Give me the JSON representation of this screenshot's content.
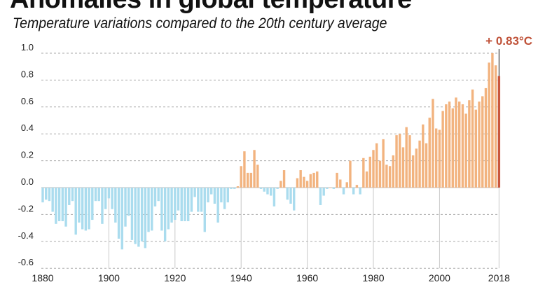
{
  "chart_data": {
    "type": "bar",
    "title": "Anomalies in global temperature",
    "subtitle": "Temperature variations compared to the 20th century average",
    "xlabel": "",
    "ylabel": "",
    "ylim": [
      -0.6,
      1.0
    ],
    "grid": true,
    "y_ticks": [
      "1.0",
      "0.8",
      "0.6",
      "0.4",
      "0.2",
      "0.0",
      "-0.2",
      "-0.4",
      "-0.6"
    ],
    "x_ticks": [
      "1880",
      "1900",
      "1920",
      "1940",
      "1960",
      "1980",
      "2000",
      "2018"
    ],
    "annotation": "+ 0.83°C",
    "colors": {
      "negative": "#aadcee",
      "positive": "#f2b37f",
      "latest": "#c9573e"
    },
    "x_start": 1880,
    "values": [
      -0.11,
      -0.09,
      -0.1,
      -0.18,
      -0.27,
      -0.25,
      -0.25,
      -0.29,
      -0.13,
      -0.1,
      -0.35,
      -0.26,
      -0.31,
      -0.32,
      -0.31,
      -0.24,
      -0.1,
      -0.1,
      -0.27,
      -0.16,
      -0.08,
      -0.16,
      -0.26,
      -0.38,
      -0.46,
      -0.29,
      -0.21,
      -0.39,
      -0.42,
      -0.44,
      -0.4,
      -0.45,
      -0.33,
      -0.32,
      -0.14,
      -0.1,
      -0.32,
      -0.4,
      -0.31,
      -0.26,
      -0.24,
      -0.17,
      -0.25,
      -0.25,
      -0.25,
      -0.18,
      -0.07,
      -0.18,
      -0.18,
      -0.33,
      -0.11,
      -0.05,
      -0.12,
      -0.26,
      -0.11,
      -0.16,
      -0.11,
      -0.01,
      -0.01,
      0.01,
      0.16,
      0.27,
      0.11,
      0.11,
      0.28,
      0.17,
      -0.01,
      -0.03,
      -0.05,
      -0.06,
      -0.14,
      -0.01,
      0.05,
      0.13,
      -0.09,
      -0.12,
      -0.17,
      0.07,
      0.13,
      0.08,
      0.05,
      0.1,
      0.11,
      0.12,
      -0.13,
      -0.06,
      -0.01,
      0.0,
      -0.01,
      0.11,
      0.06,
      -0.05,
      0.04,
      0.2,
      -0.05,
      0.02,
      -0.05,
      0.22,
      0.12,
      0.23,
      0.28,
      0.33,
      0.2,
      0.36,
      0.17,
      0.16,
      0.24,
      0.39,
      0.4,
      0.3,
      0.45,
      0.39,
      0.24,
      0.29,
      0.35,
      0.47,
      0.33,
      0.52,
      0.66,
      0.44,
      0.43,
      0.57,
      0.62,
      0.64,
      0.59,
      0.67,
      0.64,
      0.62,
      0.55,
      0.65,
      0.73,
      0.58,
      0.64,
      0.68,
      0.74,
      0.93,
      1.0,
      0.91,
      0.83
    ]
  }
}
